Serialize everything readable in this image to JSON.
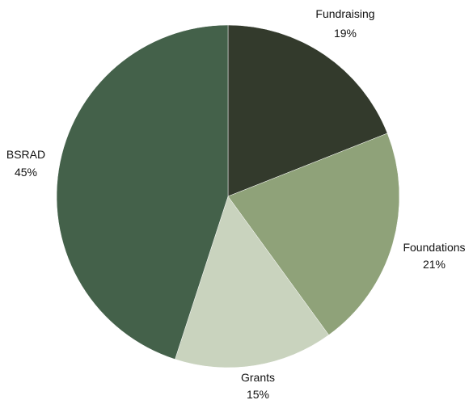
{
  "chart_data": {
    "type": "pie",
    "title": "",
    "slices": [
      {
        "name": "Fundraising",
        "value": 19,
        "label": "19%",
        "color": "#333a2c"
      },
      {
        "name": "Foundations",
        "value": 21,
        "label": "21%",
        "color": "#8fa279"
      },
      {
        "name": "Grants",
        "value": 15,
        "label": "15%",
        "color": "#c9d3be"
      },
      {
        "name": "BSRAD",
        "value": 45,
        "label": "45%",
        "color": "#44614a"
      }
    ],
    "start_angle_deg": 0,
    "direction": "clockwise",
    "legend": "none",
    "labels": "outside"
  }
}
